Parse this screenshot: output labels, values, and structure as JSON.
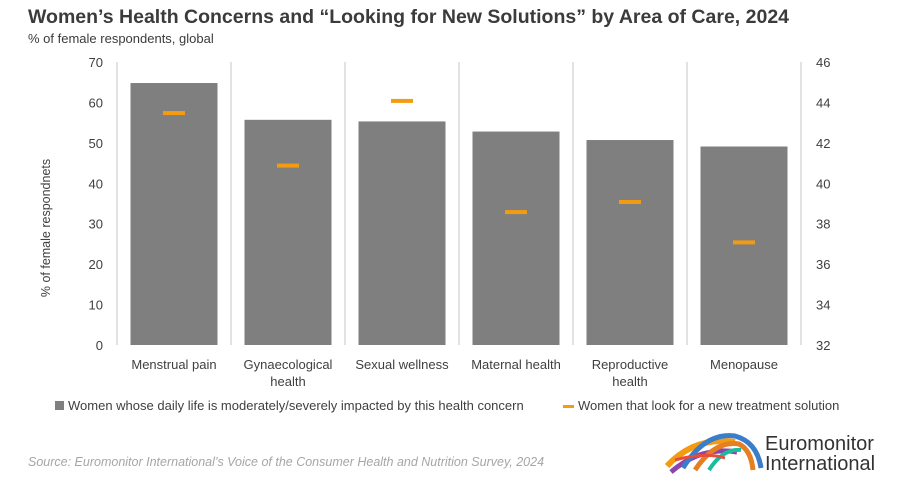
{
  "chart_data": {
    "type": "bar",
    "title": "Women’s Health Concerns and “Looking for New Solutions” by Area of Care, 2024",
    "subtitle": "% of female respondents, global",
    "ylabel": "% of female respondnets",
    "categories": [
      "Menstrual pain",
      "Gynaecological health",
      "Sexual wellness",
      "Maternal health",
      "Reproductive health",
      "Menopause"
    ],
    "category_lines": [
      [
        "Menstrual pain"
      ],
      [
        "Gynaecological",
        "health"
      ],
      [
        "Sexual wellness"
      ],
      [
        "Maternal health"
      ],
      [
        "Reproductive",
        "health"
      ],
      [
        "Menopause"
      ]
    ],
    "ylim": [
      0,
      70
    ],
    "yticks": [
      0,
      10,
      20,
      30,
      40,
      50,
      60,
      70
    ],
    "y2lim": [
      32,
      46
    ],
    "y2ticks": [
      32,
      34,
      36,
      38,
      40,
      42,
      44,
      46
    ],
    "grid": false,
    "legend_position": "bottom",
    "series": [
      {
        "name": "Women whose daily life is moderately/severely impacted by this health concern",
        "kind": "bar",
        "axis": "left",
        "color": "#7f7f7f",
        "values": [
          64.8,
          55.7,
          55.3,
          52.8,
          50.7,
          49.1
        ]
      },
      {
        "name": "Women that look for a new treatment solution",
        "kind": "marker",
        "axis": "right",
        "color": "#f39c12",
        "values": [
          43.5,
          40.9,
          44.1,
          38.6,
          39.1,
          37.1
        ]
      }
    ]
  },
  "source": "Source: Euromonitor International’s Voice of the Consumer Health and Nutrition Survey, 2024",
  "logo": {
    "line1": "Euromonitor",
    "line2": "International"
  }
}
